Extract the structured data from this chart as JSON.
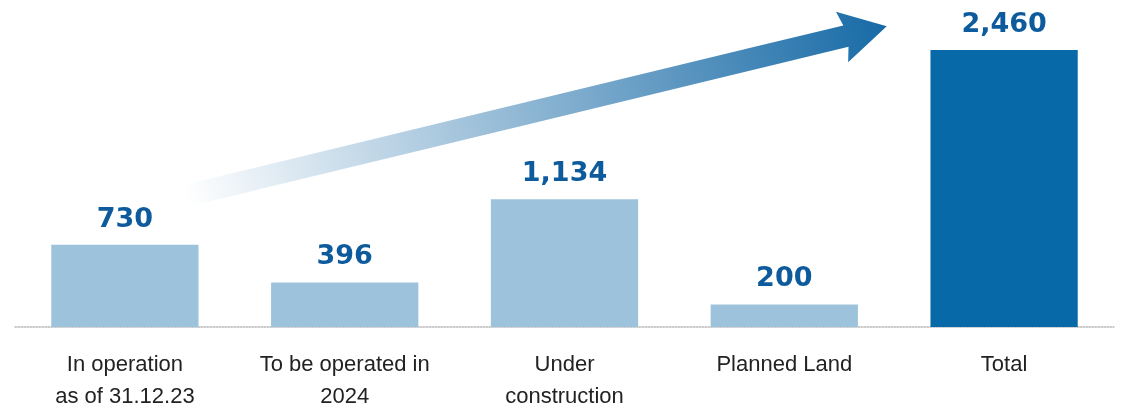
{
  "chart_data": {
    "type": "bar",
    "categories": [
      "In operation\nas of 31.12.23",
      "To be operated in\n2024",
      "Under\nconstruction",
      "Planned Land",
      "Total"
    ],
    "values": [
      730,
      396,
      1134,
      200,
      2460
    ],
    "value_labels": [
      "730",
      "396",
      "1,134",
      "200",
      "2,460"
    ],
    "colors": [
      "#9dc3dc",
      "#9dc3dc",
      "#9dc3dc",
      "#9dc3dc",
      "#0769a8"
    ]
  }
}
